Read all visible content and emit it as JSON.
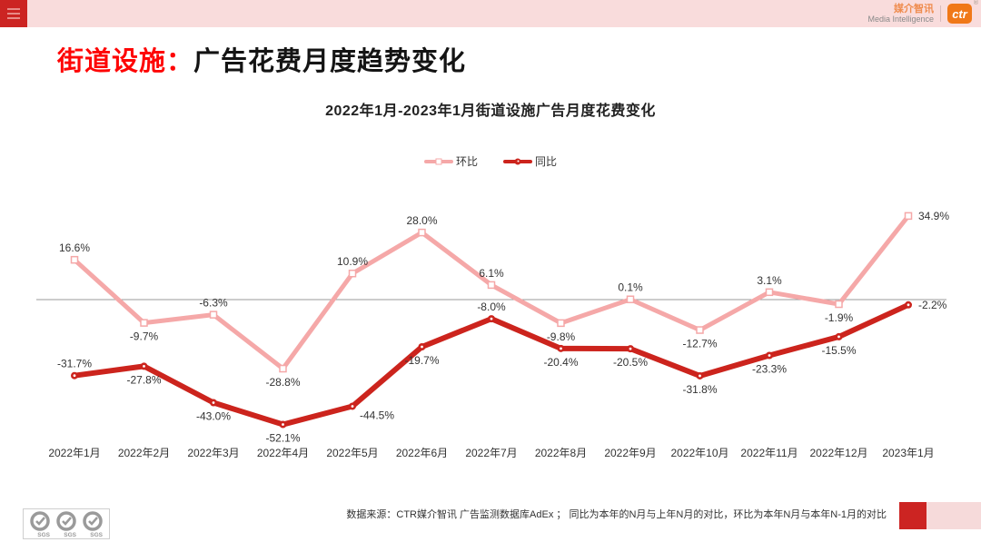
{
  "topbar": {
    "brand_cn": "媒介智讯",
    "brand_en": "Media Intelligence",
    "brand_badge": "ctr",
    "brand_reg": "®",
    "accent_red": "#cc2422",
    "bar_pink": "#f9dcdc",
    "badge_orange": "#f07818"
  },
  "header": {
    "title_prefix": "街道设施：",
    "title_main": "广告花费月度趋势变化",
    "prefix_color": "#fe0505"
  },
  "chart_data": {
    "type": "line",
    "title": "2022年1月-2023年1月街道设施广告月度花费变化",
    "categories": [
      "2022年1月",
      "2022年2月",
      "2022年3月",
      "2022年4月",
      "2022年5月",
      "2022年6月",
      "2022年7月",
      "2022年8月",
      "2022年9月",
      "2022年10月",
      "2022年11月",
      "2022年12月",
      "2023年1月"
    ],
    "series": [
      {
        "name": "环比",
        "color": "#f5a8a8",
        "marker": "square",
        "values": [
          16.6,
          -9.7,
          -6.3,
          -28.8,
          10.9,
          28.0,
          6.1,
          -9.8,
          0.1,
          -12.7,
          3.1,
          -1.9,
          34.9
        ],
        "label_pos": [
          "above",
          "below",
          "above",
          "below",
          "above",
          "above",
          "above",
          "below",
          "above",
          "below",
          "above",
          "below",
          "right"
        ]
      },
      {
        "name": "同比",
        "color": "#cc241d",
        "marker": "circle",
        "values": [
          -31.7,
          -27.8,
          -43.0,
          -52.1,
          -44.5,
          -19.7,
          -8.0,
          -20.4,
          -20.5,
          -31.8,
          -23.3,
          -15.5,
          -2.2
        ],
        "label_pos": [
          "above",
          "below",
          "below",
          "below",
          "below-right",
          "below",
          "above",
          "below",
          "below",
          "below",
          "below",
          "below",
          "right"
        ]
      }
    ],
    "ylim": [
      -60,
      45
    ],
    "zero_line": true,
    "grid": false,
    "legend_position": "top-center",
    "value_suffix": "%",
    "label_color": "#333333",
    "axis_line_color": "#999999"
  },
  "footer": {
    "source_note": "数据来源：CTR媒介智讯 广告监测数据库AdEx ； 同比为本年的N月与上年N月的对比，环比为本年N月与本年N-1月的对比",
    "sgs_label": "SGS"
  }
}
